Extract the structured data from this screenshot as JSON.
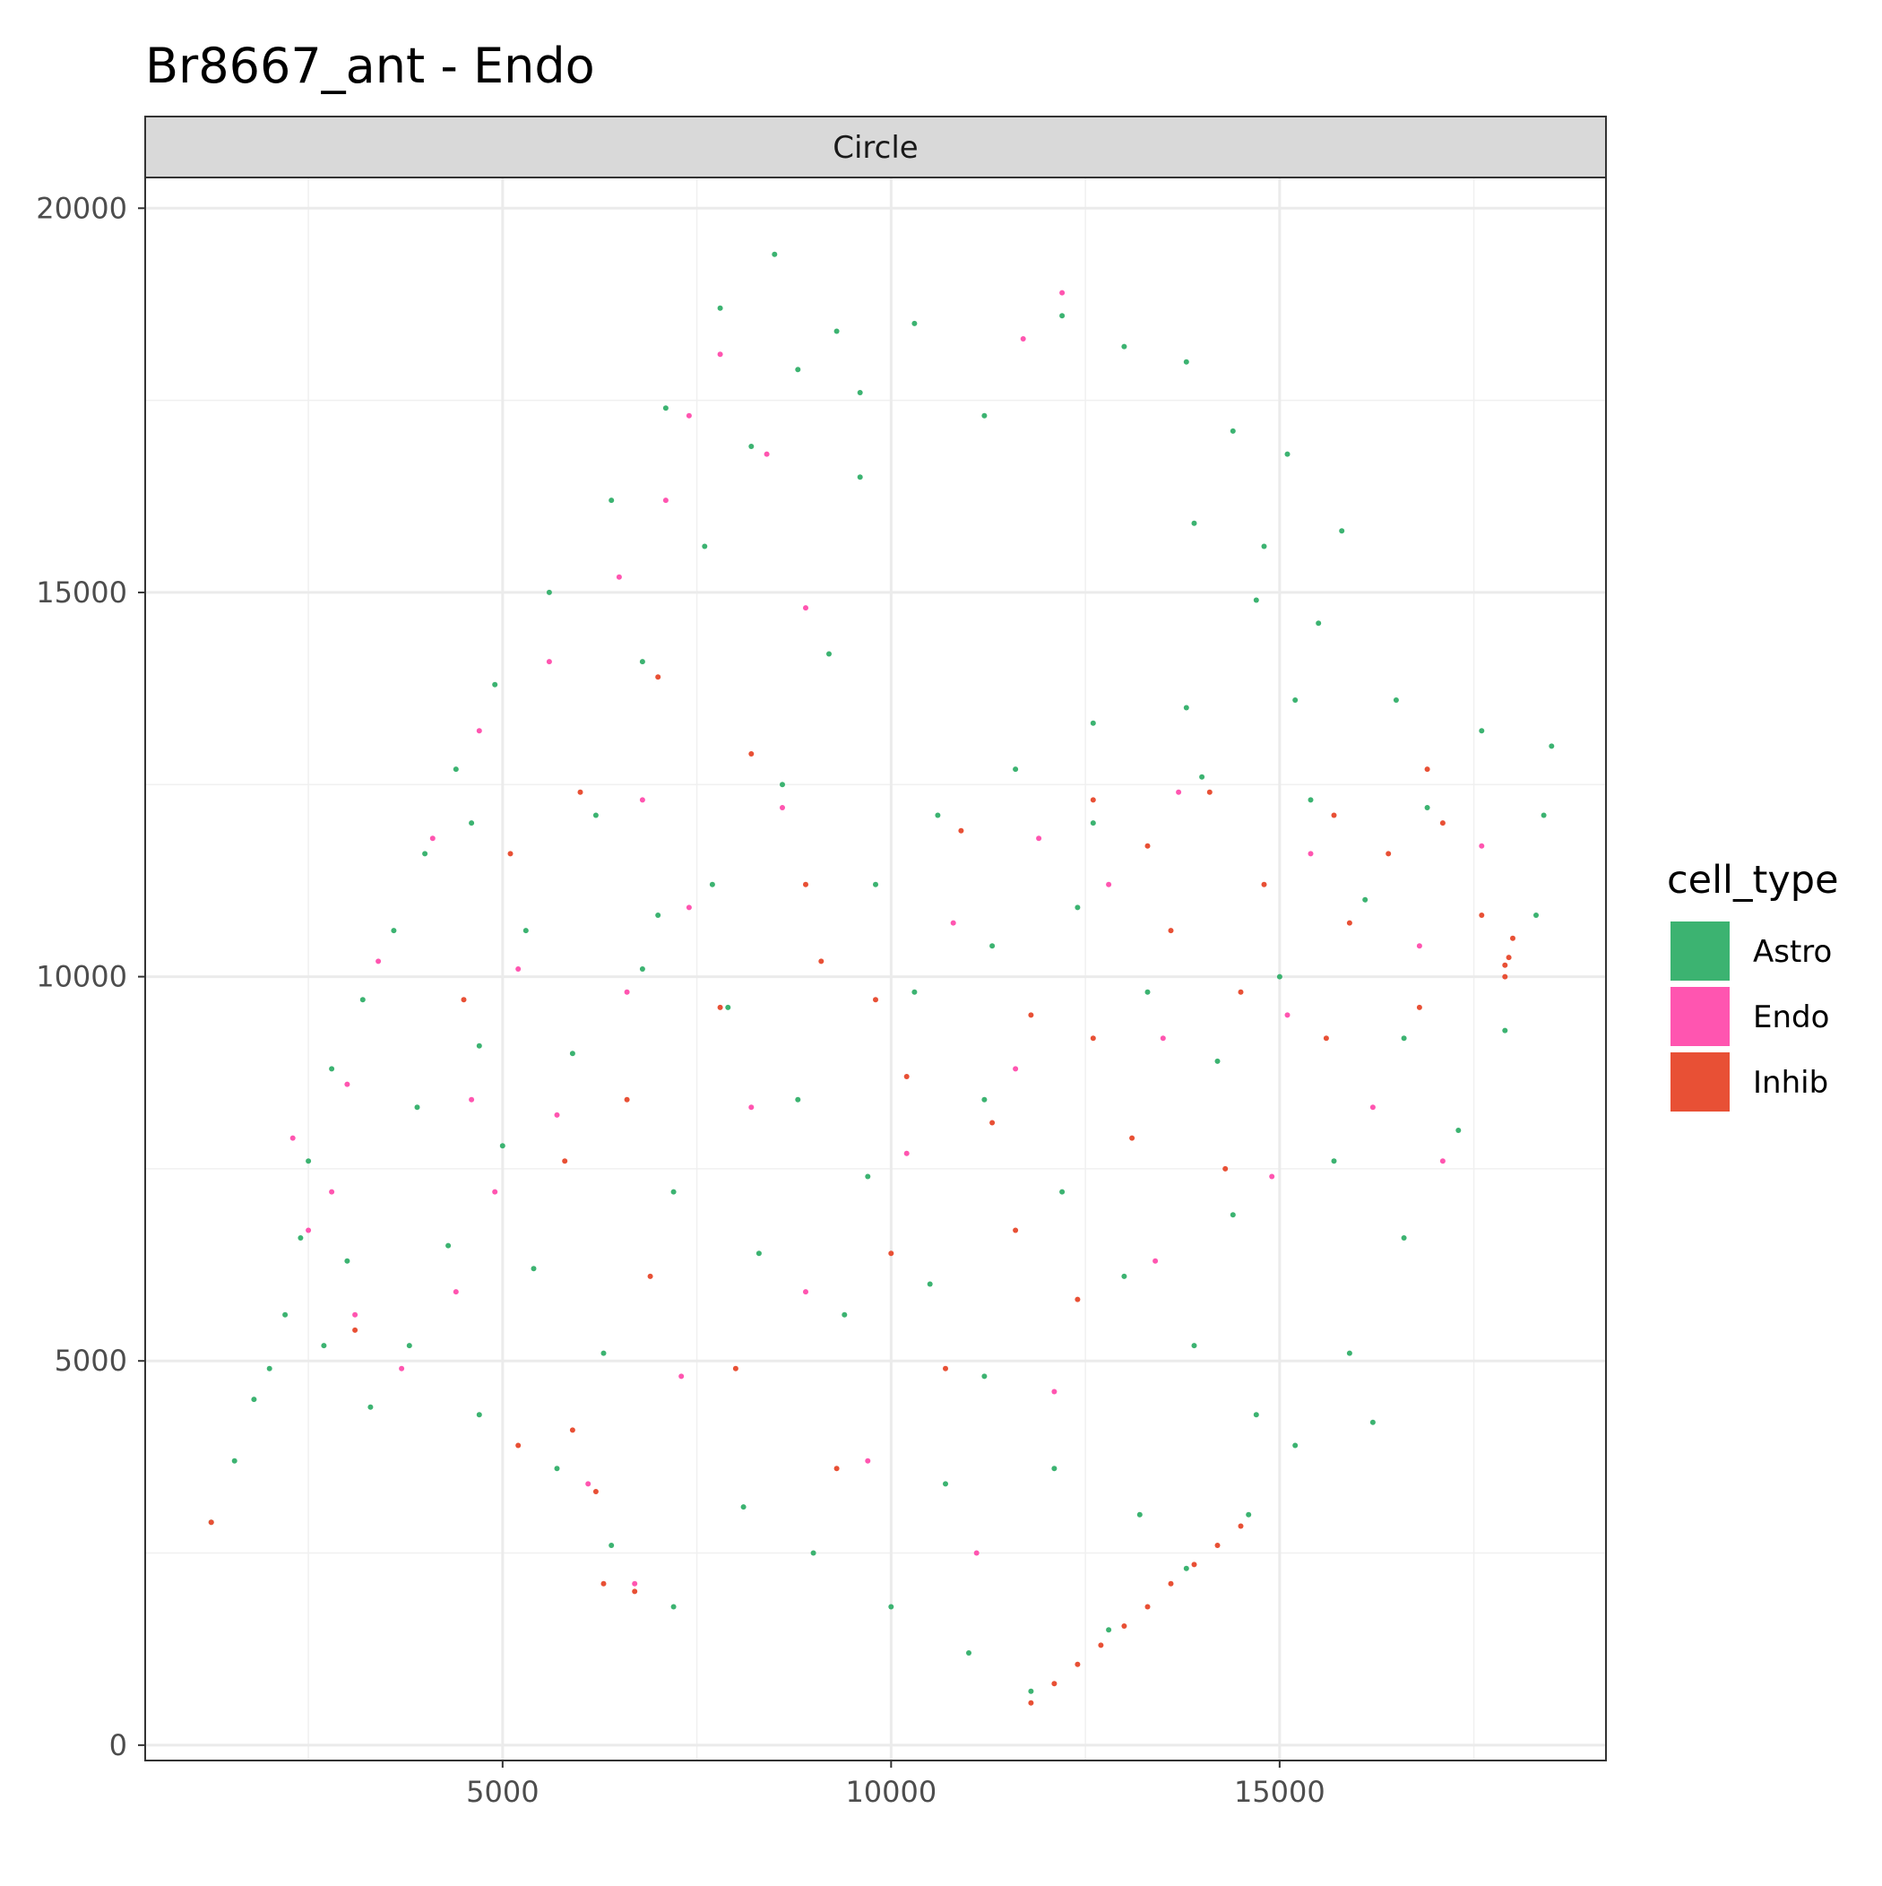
{
  "chart_data": {
    "type": "scatter",
    "title": "Br8667_ant - Endo",
    "facet_label": "Circle",
    "xlabel": "",
    "ylabel": "",
    "xlim": [
      400,
      19200
    ],
    "ylim": [
      -200,
      20400
    ],
    "x_ticks": [
      5000,
      10000,
      15000
    ],
    "x_minor": [
      2500,
      7500,
      12500,
      17500
    ],
    "y_ticks": [
      0,
      5000,
      10000,
      15000,
      20000
    ],
    "y_minor": [
      2500,
      7500,
      12500,
      17500
    ],
    "x_tick_labels": [
      "5000",
      "10000",
      "15000"
    ],
    "y_tick_labels": [
      "0",
      "5000",
      "10000",
      "15000",
      "20000"
    ],
    "grid": true,
    "legend": {
      "title": "cell_type",
      "position": "right",
      "entries": [
        {
          "name": "Astro",
          "color": "#3CB371"
        },
        {
          "name": "Endo",
          "color": "#FF55B0"
        },
        {
          "name": "Inhib",
          "color": "#E85035"
        }
      ]
    },
    "series": [
      {
        "name": "Astro",
        "color": "#3CB371",
        "points": [
          [
            1250,
            2900
          ],
          [
            1550,
            3700
          ],
          [
            1800,
            4500
          ],
          [
            2200,
            5600
          ],
          [
            2400,
            6600
          ],
          [
            2500,
            7600
          ],
          [
            2800,
            8800
          ],
          [
            3200,
            9700
          ],
          [
            3600,
            10600
          ],
          [
            4000,
            11600
          ],
          [
            4400,
            12700
          ],
          [
            4900,
            13800
          ],
          [
            5600,
            15000
          ],
          [
            6400,
            16200
          ],
          [
            7100,
            17400
          ],
          [
            7800,
            18700
          ],
          [
            8500,
            19400
          ],
          [
            9300,
            18400
          ],
          [
            9600,
            16500
          ],
          [
            9200,
            14200
          ],
          [
            8600,
            12500
          ],
          [
            7700,
            11200
          ],
          [
            6800,
            10100
          ],
          [
            5900,
            9000
          ],
          [
            5000,
            7800
          ],
          [
            4300,
            6500
          ],
          [
            3800,
            5200
          ],
          [
            3300,
            4400
          ],
          [
            4700,
            4300
          ],
          [
            5700,
            3600
          ],
          [
            6400,
            2600
          ],
          [
            7200,
            1800
          ],
          [
            8100,
            3100
          ],
          [
            9000,
            2500
          ],
          [
            10000,
            1800
          ],
          [
            11000,
            1200
          ],
          [
            11800,
            700
          ],
          [
            12800,
            1500
          ],
          [
            13800,
            2300
          ],
          [
            14600,
            3000
          ],
          [
            15200,
            3900
          ],
          [
            15900,
            5100
          ],
          [
            16600,
            6600
          ],
          [
            17300,
            8000
          ],
          [
            17900,
            9300
          ],
          [
            18300,
            10800
          ],
          [
            18400,
            12100
          ],
          [
            18500,
            13000
          ],
          [
            17600,
            13200
          ],
          [
            16500,
            13600
          ],
          [
            15200,
            13600
          ],
          [
            13800,
            13500
          ],
          [
            12600,
            13300
          ],
          [
            11600,
            12700
          ],
          [
            10600,
            12100
          ],
          [
            9800,
            11200
          ],
          [
            10300,
            9800
          ],
          [
            11200,
            8400
          ],
          [
            12200,
            7200
          ],
          [
            13000,
            6100
          ],
          [
            13900,
            5200
          ],
          [
            14700,
            4300
          ],
          [
            12100,
            3600
          ],
          [
            11200,
            4800
          ],
          [
            10500,
            6000
          ],
          [
            9700,
            7400
          ],
          [
            8800,
            8400
          ],
          [
            7900,
            9600
          ],
          [
            7000,
            10800
          ],
          [
            6200,
            12100
          ],
          [
            6800,
            14100
          ],
          [
            7600,
            15600
          ],
          [
            8200,
            16900
          ],
          [
            8800,
            17900
          ],
          [
            9600,
            17600
          ],
          [
            10300,
            18500
          ],
          [
            11200,
            17300
          ],
          [
            12200,
            18600
          ],
          [
            13000,
            18200
          ],
          [
            13800,
            18000
          ],
          [
            14400,
            17100
          ],
          [
            15100,
            16800
          ],
          [
            15800,
            15800
          ],
          [
            14800,
            15600
          ],
          [
            13900,
            15900
          ],
          [
            14700,
            14900
          ],
          [
            15500,
            14600
          ],
          [
            16900,
            12200
          ],
          [
            16100,
            11000
          ],
          [
            15000,
            10000
          ],
          [
            14200,
            8900
          ],
          [
            13300,
            9800
          ],
          [
            12400,
            10900
          ],
          [
            11300,
            10400
          ],
          [
            12600,
            12000
          ],
          [
            14000,
            12600
          ],
          [
            15400,
            12300
          ],
          [
            16600,
            9200
          ],
          [
            15700,
            7600
          ],
          [
            14400,
            6900
          ],
          [
            16200,
            4200
          ],
          [
            13200,
            3000
          ],
          [
            10700,
            3400
          ],
          [
            9400,
            5600
          ],
          [
            8300,
            6400
          ],
          [
            7200,
            7200
          ],
          [
            6300,
            5100
          ],
          [
            5400,
            6200
          ],
          [
            4700,
            9100
          ],
          [
            5300,
            10600
          ],
          [
            4600,
            12000
          ],
          [
            3900,
            8300
          ],
          [
            3000,
            6300
          ],
          [
            2700,
            5200
          ],
          [
            2000,
            4900
          ]
        ]
      },
      {
        "name": "Endo",
        "color": "#FF55B0",
        "points": [
          [
            2300,
            7900
          ],
          [
            2500,
            6700
          ],
          [
            3000,
            8600
          ],
          [
            3400,
            10200
          ],
          [
            4100,
            11800
          ],
          [
            4700,
            13200
          ],
          [
            5600,
            14100
          ],
          [
            6500,
            15200
          ],
          [
            7100,
            16200
          ],
          [
            7400,
            17300
          ],
          [
            7800,
            18100
          ],
          [
            8400,
            16800
          ],
          [
            8900,
            14800
          ],
          [
            8600,
            12200
          ],
          [
            7400,
            10900
          ],
          [
            6600,
            9800
          ],
          [
            5700,
            8200
          ],
          [
            4900,
            7200
          ],
          [
            4400,
            5900
          ],
          [
            3700,
            4900
          ],
          [
            3100,
            5600
          ],
          [
            2800,
            7200
          ],
          [
            12200,
            18900
          ],
          [
            11700,
            18300
          ],
          [
            6700,
            2100
          ],
          [
            6100,
            3400
          ],
          [
            7300,
            4800
          ],
          [
            8900,
            5900
          ],
          [
            10200,
            7700
          ],
          [
            11600,
            8800
          ],
          [
            12800,
            11200
          ],
          [
            13700,
            12400
          ],
          [
            15400,
            11600
          ],
          [
            16800,
            10400
          ],
          [
            17600,
            11700
          ],
          [
            16200,
            8300
          ],
          [
            14900,
            7400
          ],
          [
            13400,
            6300
          ],
          [
            12100,
            4600
          ],
          [
            11100,
            2500
          ],
          [
            9700,
            3700
          ],
          [
            8200,
            8300
          ],
          [
            6800,
            12300
          ],
          [
            5200,
            10100
          ],
          [
            4600,
            8400
          ],
          [
            10800,
            10700
          ],
          [
            11900,
            11800
          ],
          [
            13500,
            9200
          ],
          [
            15100,
            9500
          ],
          [
            17100,
            7600
          ]
        ]
      },
      {
        "name": "Inhib",
        "color": "#E85035",
        "points": [
          [
            11800,
            550
          ],
          [
            12100,
            800
          ],
          [
            12400,
            1050
          ],
          [
            12700,
            1300
          ],
          [
            13000,
            1550
          ],
          [
            13300,
            1800
          ],
          [
            13600,
            2100
          ],
          [
            13900,
            2350
          ],
          [
            14200,
            2600
          ],
          [
            14500,
            2850
          ],
          [
            17900,
            10000
          ],
          [
            17950,
            10250
          ],
          [
            18000,
            10500
          ],
          [
            17900,
            10150
          ],
          [
            1250,
            2900
          ],
          [
            6300,
            2100
          ],
          [
            6700,
            2000
          ],
          [
            6200,
            3300
          ],
          [
            3100,
            5400
          ],
          [
            4500,
            9700
          ],
          [
            5100,
            11600
          ],
          [
            6000,
            12400
          ],
          [
            7000,
            13900
          ],
          [
            8200,
            12900
          ],
          [
            8900,
            11200
          ],
          [
            9800,
            9700
          ],
          [
            10900,
            11900
          ],
          [
            11800,
            9500
          ],
          [
            12600,
            12300
          ],
          [
            13300,
            11700
          ],
          [
            14100,
            12400
          ],
          [
            14800,
            11200
          ],
          [
            15700,
            12100
          ],
          [
            16400,
            11600
          ],
          [
            17100,
            12000
          ],
          [
            17600,
            10800
          ],
          [
            16800,
            9600
          ],
          [
            15600,
            9200
          ],
          [
            14500,
            9800
          ],
          [
            13600,
            10600
          ],
          [
            12600,
            9200
          ],
          [
            11300,
            8100
          ],
          [
            10200,
            8700
          ],
          [
            9100,
            10200
          ],
          [
            7800,
            9600
          ],
          [
            6600,
            8400
          ],
          [
            5800,
            7600
          ],
          [
            6900,
            6100
          ],
          [
            8000,
            4900
          ],
          [
            9300,
            3600
          ],
          [
            10700,
            4900
          ],
          [
            12400,
            5800
          ],
          [
            13100,
            7900
          ],
          [
            14300,
            7500
          ],
          [
            15900,
            10700
          ],
          [
            16900,
            12700
          ],
          [
            11600,
            6700
          ],
          [
            10000,
            6400
          ],
          [
            5900,
            4100
          ],
          [
            5200,
            3900
          ]
        ]
      }
    ]
  }
}
